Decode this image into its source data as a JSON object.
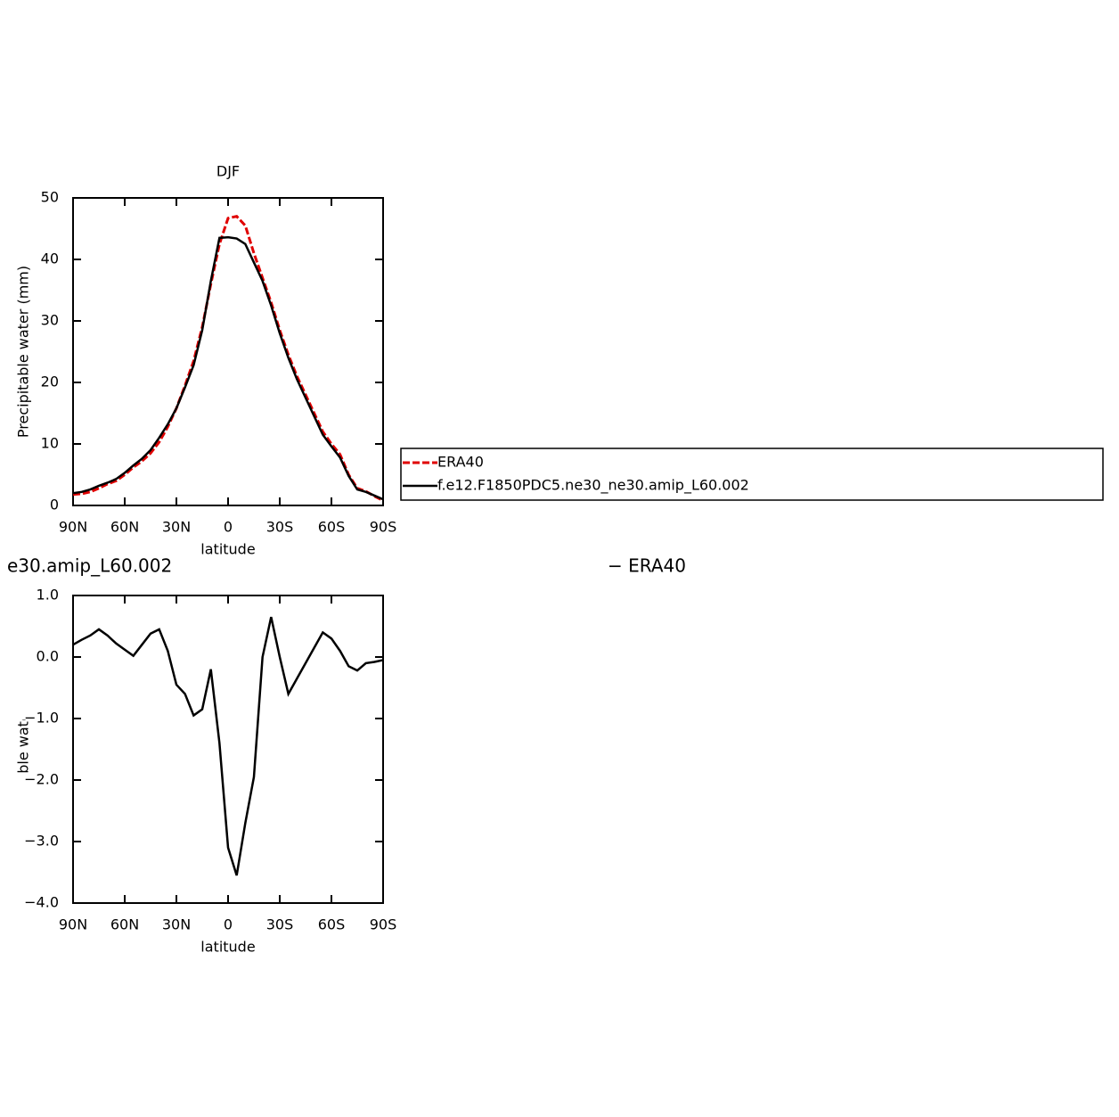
{
  "chart_data": [
    {
      "type": "line",
      "title": "DJF",
      "x_label": "latitude",
      "y_label": "Precipitable water (mm)",
      "x": [
        90,
        85,
        80,
        75,
        70,
        65,
        60,
        55,
        50,
        45,
        40,
        35,
        30,
        25,
        20,
        15,
        10,
        5,
        0,
        -5,
        -10,
        -15,
        -20,
        -25,
        -30,
        -35,
        -40,
        -45,
        -50,
        -55,
        -60,
        -65,
        -70,
        -75,
        -80,
        -85,
        -90
      ],
      "xlim": [
        90,
        -90
      ],
      "xticks": [
        {
          "value": 90,
          "label": "90N"
        },
        {
          "value": 60,
          "label": "60N"
        },
        {
          "value": 30,
          "label": "30N"
        },
        0,
        {
          "value": -30,
          "label": "30S"
        },
        {
          "value": -60,
          "label": "60S"
        },
        {
          "value": -90,
          "label": "90S"
        }
      ],
      "ylim": [
        0,
        50
      ],
      "yticks": [
        0,
        10,
        20,
        30,
        40,
        50
      ],
      "legend": "right",
      "series": [
        {
          "name": "ERA40",
          "color": "#e00000",
          "dash": true,
          "values": [
            1.8,
            1.9,
            2.2,
            2.8,
            3.5,
            4.0,
            5.0,
            6.2,
            7.2,
            8.5,
            10.3,
            12.8,
            15.8,
            19.5,
            23.5,
            29,
            36,
            42.5,
            46.7,
            47,
            45.5,
            41,
            37,
            33,
            28.5,
            24.5,
            21,
            18,
            15,
            12,
            10,
            8.3,
            5,
            2.8,
            2.3,
            1.5,
            0.8
          ]
        },
        {
          "name": "f.e12.F1850PDC5.ne30_ne30.amip_L60.002",
          "color": "#000000",
          "dash": false,
          "values": [
            2.0,
            2.2,
            2.6,
            3.2,
            3.7,
            4.3,
            5.3,
            6.5,
            7.6,
            9.0,
            11.0,
            13.2,
            15.8,
            19.2,
            22.8,
            28.5,
            36.5,
            43.5,
            43.6,
            43.4,
            42.5,
            39.5,
            36.5,
            32.5,
            28,
            24,
            20.5,
            17.5,
            14.5,
            11.5,
            9.6,
            7.8,
            4.8,
            2.6,
            2.2,
            1.6,
            1.0
          ]
        }
      ]
    },
    {
      "type": "line",
      "title": "e30.amip_L60.002",
      "subtitle": "− ERA40",
      "x_label": "latitude",
      "y_label": "Precipitable water (mm)",
      "x": [
        90,
        85,
        80,
        75,
        70,
        65,
        60,
        55,
        50,
        45,
        40,
        35,
        30,
        25,
        20,
        15,
        10,
        5,
        0,
        -5,
        -10,
        -15,
        -20,
        -25,
        -30,
        -35,
        -40,
        -45,
        -50,
        -55,
        -60,
        -65,
        -70,
        -75,
        -80,
        -85,
        -90
      ],
      "xlim": [
        90,
        -90
      ],
      "xticks": [
        {
          "value": 90,
          "label": "90N"
        },
        {
          "value": 60,
          "label": "60N"
        },
        {
          "value": 30,
          "label": "30N"
        },
        0,
        {
          "value": -30,
          "label": "30S"
        },
        {
          "value": -60,
          "label": "60S"
        },
        {
          "value": -90,
          "label": "90S"
        }
      ],
      "ylim": [
        -4,
        1
      ],
      "yticks": [
        {
          "value": -4,
          "label": "−4.0"
        },
        {
          "value": -3,
          "label": "−3.0"
        },
        {
          "value": -2,
          "label": "−2.0"
        },
        {
          "value": -1,
          "label": "−1.0"
        },
        {
          "value": 0,
          "label": "0.0"
        },
        {
          "value": 1,
          "label": "1.0"
        }
      ],
      "series": [
        {
          "color": "#000000",
          "dash": false,
          "values": [
            0.2,
            0.28,
            0.35,
            0.45,
            0.35,
            0.22,
            0.12,
            0.02,
            0.2,
            0.38,
            0.45,
            0.1,
            -0.45,
            -0.6,
            -0.95,
            -0.85,
            -0.2,
            -1.4,
            -3.1,
            -3.55,
            -2.7,
            -1.95,
            0.0,
            0.65,
            0.0,
            -0.6,
            -0.35,
            -0.1,
            0.15,
            0.4,
            0.3,
            0.1,
            -0.15,
            -0.22,
            -0.1,
            -0.08,
            -0.05
          ]
        }
      ]
    }
  ]
}
